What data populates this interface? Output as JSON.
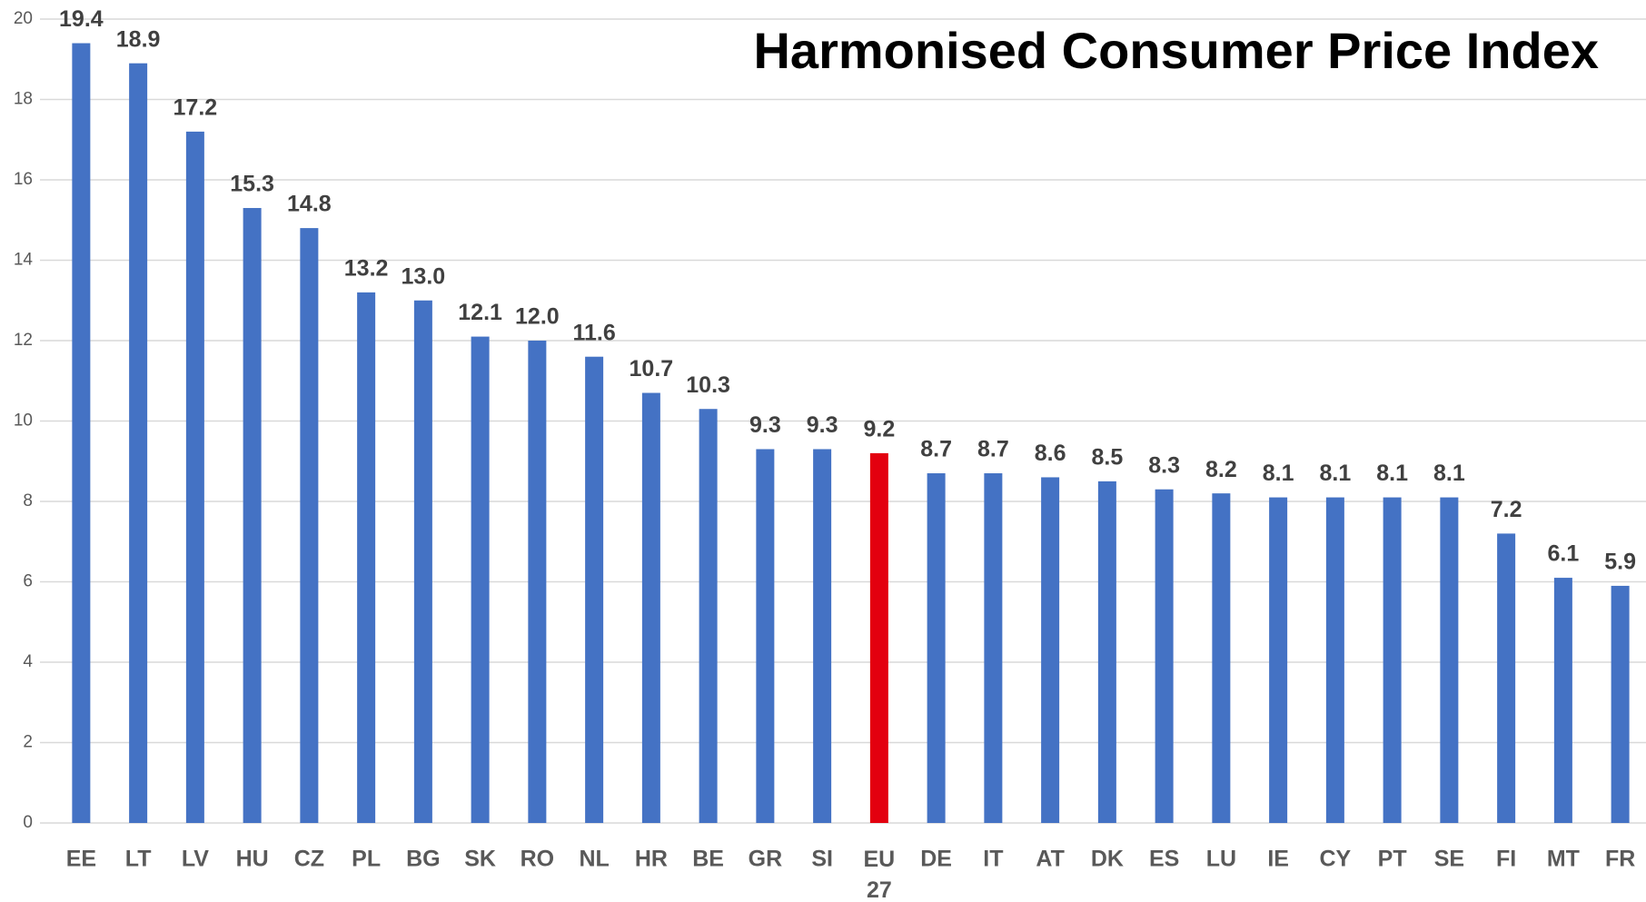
{
  "chart_data": {
    "type": "bar",
    "title": "Harmonised Consumer Price Index",
    "categories": [
      "EE",
      "LT",
      "LV",
      "HU",
      "CZ",
      "PL",
      "BG",
      "SK",
      "RO",
      "NL",
      "HR",
      "BE",
      "GR",
      "SI",
      "EU 27",
      "DE",
      "IT",
      "AT",
      "DK",
      "ES",
      "LU",
      "IE",
      "CY",
      "PT",
      "SE",
      "FI",
      "MT",
      "FR"
    ],
    "values": [
      19.4,
      18.9,
      17.2,
      15.3,
      14.8,
      13.2,
      13.0,
      12.1,
      12.0,
      11.6,
      10.7,
      10.3,
      9.3,
      9.3,
      9.2,
      8.7,
      8.7,
      8.6,
      8.5,
      8.3,
      8.2,
      8.1,
      8.1,
      8.1,
      8.1,
      7.2,
      6.1,
      5.9
    ],
    "value_labels": [
      "19.4",
      "18.9",
      "17.2",
      "15.3",
      "14.8",
      "13.2",
      "13.0",
      "12.1",
      "12.0",
      "11.6",
      "10.7",
      "10.3",
      "9.3",
      "9.3",
      "9.2",
      "8.7",
      "8.7",
      "8.6",
      "8.5",
      "8.3",
      "8.2",
      "8.1",
      "8.1",
      "8.1",
      "8.1",
      "7.2",
      "6.1",
      "5.9"
    ],
    "colors": [
      "#4472c4",
      "#4472c4",
      "#4472c4",
      "#4472c4",
      "#4472c4",
      "#4472c4",
      "#4472c4",
      "#4472c4",
      "#4472c4",
      "#4472c4",
      "#4472c4",
      "#4472c4",
      "#4472c4",
      "#4472c4",
      "#e3000f",
      "#4472c4",
      "#4472c4",
      "#4472c4",
      "#4472c4",
      "#4472c4",
      "#4472c4",
      "#4472c4",
      "#4472c4",
      "#4472c4",
      "#4472c4",
      "#4472c4",
      "#4472c4",
      "#4472c4"
    ],
    "ylim": [
      0,
      20
    ],
    "yticks": [
      0,
      2,
      4,
      6,
      8,
      10,
      12,
      14,
      16,
      18,
      20
    ],
    "grid": true
  }
}
